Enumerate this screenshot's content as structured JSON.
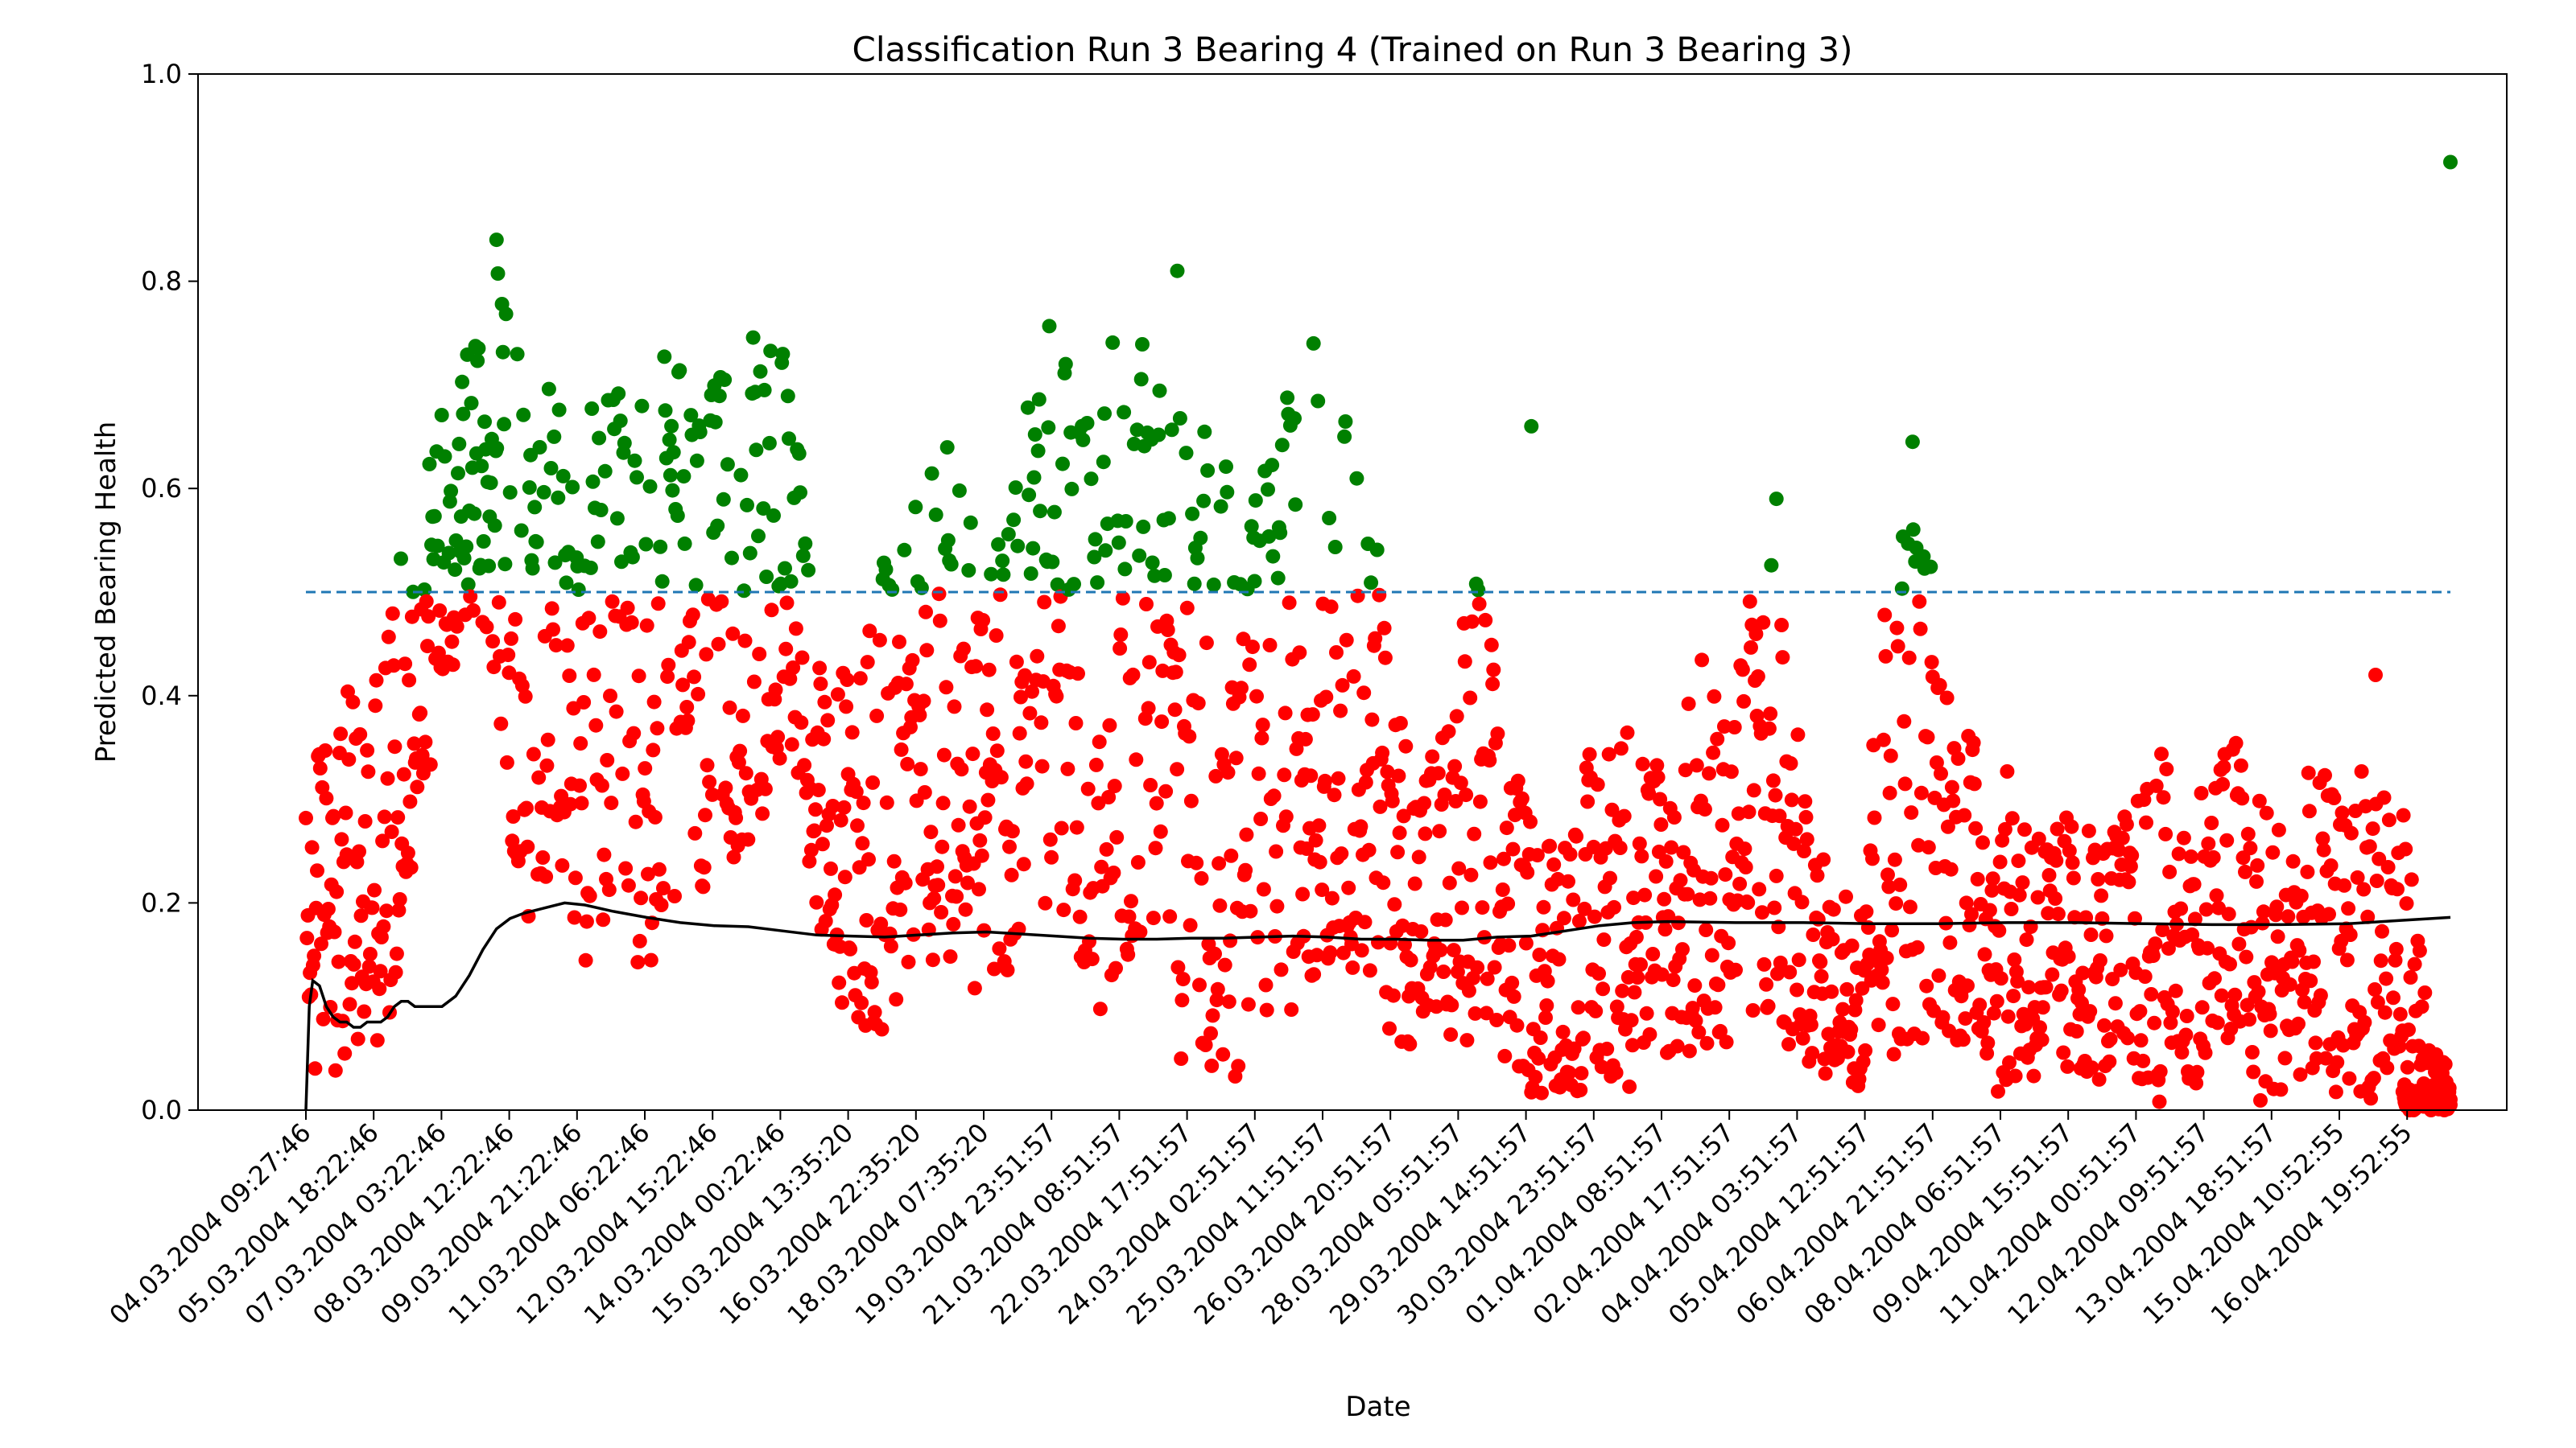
{
  "chart_data": {
    "type": "scatter",
    "title": "Classification Run 3 Bearing 4 (Trained on Run 3 Bearing 3)",
    "xlabel": "Date",
    "ylabel": "Predicted Bearing Health",
    "ylim": [
      0,
      1.0
    ],
    "yticks": [
      "0.0",
      "0.2",
      "0.4",
      "0.6",
      "0.8",
      "1.0"
    ],
    "x_tick_labels": [
      "04.03.2004 09:27:46",
      "05.03.2004 18:22:46",
      "07.03.2004 03:22:46",
      "08.03.2004 12:22:46",
      "09.03.2004 21:22:46",
      "11.03.2004 06:22:46",
      "12.03.2004 15:22:46",
      "14.03.2004 00:22:46",
      "15.03.2004 13:35:20",
      "16.03.2004 22:35:20",
      "18.03.2004 07:35:20",
      "19.03.2004 23:51:57",
      "21.03.2004 08:51:57",
      "22.03.2004 17:51:57",
      "24.03.2004 02:51:57",
      "25.03.2004 11:51:57",
      "26.03.2004 20:51:57",
      "28.03.2004 05:51:57",
      "29.03.2004 14:51:57",
      "30.03.2004 23:51:57",
      "01.04.2004 08:51:57",
      "02.04.2004 17:51:57",
      "04.04.2004 03:51:57",
      "05.04.2004 12:51:57",
      "06.04.2004 21:51:57",
      "08.04.2004 06:51:57",
      "09.04.2004 15:51:57",
      "11.04.2004 00:51:57",
      "12.04.2004 09:51:57",
      "13.04.2004 18:51:57",
      "15.04.2004 10:52:55",
      "16.04.2004 19:52:55"
    ],
    "threshold": {
      "value": 0.5,
      "color": "#1f77b4",
      "style": "dashed"
    },
    "colors": {
      "healthy": "#008000",
      "faulty": "#ff0000",
      "average": "#000000"
    },
    "grid": false,
    "series": [
      {
        "kind": "scatter",
        "note_values": "sample index (0..5000) / predicted health; sampled envelope of the dense cloud",
        "profile": [
          [
            0,
            0.03,
            0.3
          ],
          [
            80,
            0.05,
            0.42
          ],
          [
            160,
            0.05,
            0.4
          ],
          [
            240,
            0.06,
            0.49
          ],
          [
            330,
            0.3,
            0.58
          ],
          [
            400,
            0.38,
            0.7
          ],
          [
            480,
            0.45,
            0.78
          ],
          [
            560,
            0.42,
            0.83
          ],
          [
            640,
            0.16,
            0.76
          ],
          [
            720,
            0.2,
            0.68
          ],
          [
            800,
            0.13,
            0.66
          ],
          [
            880,
            0.18,
            0.7
          ],
          [
            960,
            0.12,
            0.68
          ],
          [
            1040,
            0.17,
            0.74
          ],
          [
            1120,
            0.2,
            0.72
          ],
          [
            1200,
            0.18,
            0.7
          ],
          [
            1280,
            0.25,
            0.72
          ],
          [
            1360,
            0.3,
            0.76
          ],
          [
            1440,
            0.35,
            0.72
          ],
          [
            1520,
            0.1,
            0.4
          ],
          [
            1600,
            0.09,
            0.45
          ],
          [
            1680,
            0.08,
            0.52
          ],
          [
            1760,
            0.12,
            0.58
          ],
          [
            1840,
            0.15,
            0.68
          ],
          [
            1920,
            0.15,
            0.6
          ],
          [
            2000,
            0.11,
            0.55
          ],
          [
            2080,
            0.15,
            0.6
          ],
          [
            2160,
            0.2,
            0.78
          ],
          [
            2240,
            0.18,
            0.76
          ],
          [
            2320,
            0.08,
            0.72
          ],
          [
            2400,
            0.15,
            0.76
          ],
          [
            2480,
            0.18,
            0.8
          ],
          [
            2560,
            0.05,
            0.7
          ],
          [
            2640,
            0.06,
            0.66
          ],
          [
            2720,
            0.04,
            0.64
          ],
          [
            2800,
            0.05,
            0.6
          ],
          [
            2880,
            0.1,
            0.7
          ],
          [
            2960,
            0.12,
            0.72
          ],
          [
            3040,
            0.16,
            0.68
          ],
          [
            3120,
            0.13,
            0.62
          ],
          [
            3200,
            0.07,
            0.4
          ],
          [
            3280,
            0.06,
            0.36
          ],
          [
            3360,
            0.07,
            0.38
          ],
          [
            3440,
            0.05,
            0.56
          ],
          [
            3520,
            0.03,
            0.35
          ],
          [
            3600,
            0.02,
            0.3
          ],
          [
            3680,
            0.03,
            0.28
          ],
          [
            3760,
            0.02,
            0.34
          ],
          [
            3840,
            0.02,
            0.39
          ],
          [
            3920,
            0.03,
            0.38
          ],
          [
            4000,
            0.04,
            0.34
          ],
          [
            4080,
            0.05,
            0.46
          ],
          [
            4160,
            0.06,
            0.42
          ],
          [
            4240,
            0.07,
            0.5
          ],
          [
            4320,
            0.05,
            0.58
          ],
          [
            4400,
            0.06,
            0.3
          ],
          [
            4480,
            0.04,
            0.22
          ],
          [
            4560,
            0.02,
            0.24
          ],
          [
            4640,
            0.05,
            0.5
          ],
          [
            4720,
            0.08,
            0.64
          ],
          [
            4800,
            0.07,
            0.48
          ],
          [
            4880,
            0.06,
            0.4
          ],
          [
            4960,
            0.02,
            0.3
          ],
          [
            5040,
            0.03,
            0.36
          ],
          [
            5120,
            0.02,
            0.28
          ],
          [
            5200,
            0.03,
            0.3
          ],
          [
            5280,
            0.02,
            0.26
          ],
          [
            5360,
            0.03,
            0.3
          ],
          [
            5440,
            0.02,
            0.36
          ],
          [
            5520,
            0.03,
            0.3
          ],
          [
            5600,
            0.02,
            0.34
          ],
          [
            5680,
            0.02,
            0.38
          ],
          [
            5760,
            0.01,
            0.3
          ],
          [
            5840,
            0.02,
            0.29
          ],
          [
            5920,
            0.02,
            0.33
          ],
          [
            6000,
            0.02,
            0.28
          ],
          [
            6080,
            0.01,
            0.4
          ],
          [
            6160,
            0.0,
            0.3
          ],
          [
            6240,
            0.0,
            0.08
          ],
          [
            6300,
            0.0,
            0.02
          ]
        ],
        "outliers": [
          [
            6300,
            0.915
          ],
          [
            2960,
            0.74
          ],
          [
            4720,
            0.645
          ],
          [
            3600,
            0.66
          ],
          [
            4320,
            0.59
          ],
          [
            2560,
            0.81
          ],
          [
            560,
            0.84
          ],
          [
            6080,
            0.42
          ]
        ]
      },
      {
        "kind": "line",
        "name_meaning": "running mean",
        "x": [
          0,
          10,
          20,
          40,
          60,
          80,
          100,
          120,
          140,
          160,
          180,
          200,
          220,
          240,
          260,
          280,
          300,
          320,
          340,
          360,
          380,
          400,
          440,
          480,
          520,
          560,
          600,
          640,
          700,
          760,
          820,
          900,
          1000,
          1100,
          1200,
          1300,
          1400,
          1500,
          1600,
          1700,
          1800,
          1900,
          2000,
          2100,
          2200,
          2300,
          2400,
          2500,
          2600,
          2700,
          2800,
          2900,
          3000,
          3100,
          3200,
          3300,
          3400,
          3500,
          3600,
          3700,
          3800,
          3900,
          4000,
          4200,
          4400,
          4600,
          4800,
          5000,
          5200,
          5400,
          5600,
          5800,
          6000,
          6150,
          6300
        ],
        "y": [
          0.0,
          0.1,
          0.125,
          0.12,
          0.1,
          0.09,
          0.085,
          0.085,
          0.08,
          0.08,
          0.085,
          0.085,
          0.085,
          0.09,
          0.1,
          0.105,
          0.105,
          0.1,
          0.1,
          0.1,
          0.1,
          0.1,
          0.11,
          0.13,
          0.155,
          0.175,
          0.185,
          0.19,
          0.195,
          0.2,
          0.198,
          0.192,
          0.186,
          0.181,
          0.178,
          0.177,
          0.173,
          0.169,
          0.168,
          0.167,
          0.169,
          0.171,
          0.172,
          0.17,
          0.168,
          0.166,
          0.165,
          0.165,
          0.166,
          0.166,
          0.167,
          0.168,
          0.167,
          0.165,
          0.165,
          0.164,
          0.164,
          0.167,
          0.168,
          0.173,
          0.178,
          0.181,
          0.182,
          0.181,
          0.181,
          0.18,
          0.18,
          0.181,
          0.181,
          0.18,
          0.179,
          0.179,
          0.18,
          0.183,
          0.186
        ]
      }
    ]
  }
}
